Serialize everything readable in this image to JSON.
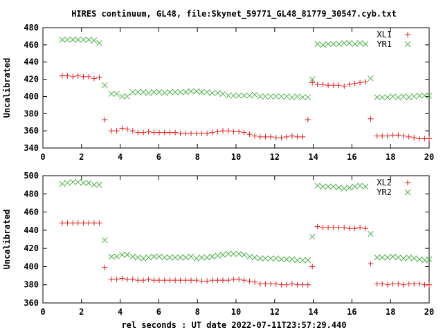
{
  "figure": {
    "title": "HIRES continuum, GL48, file:Skynet_59771_GL48_81779_30547.cyb.txt",
    "xlabel": "rel seconds : UT date 2022-07-11T23:57:29.440"
  },
  "chart_data": [
    {
      "type": "scatter",
      "ylabel": "Uncalibrated",
      "xlim": [
        0,
        20
      ],
      "ylim": [
        340,
        480
      ],
      "xticks": [
        "0",
        "2",
        "4",
        "6",
        "8",
        "10",
        "12",
        "14",
        "16",
        "18",
        "20"
      ],
      "yticks": [
        "340",
        "360",
        "380",
        "400",
        "420",
        "440",
        "460",
        "480"
      ],
      "legend_position": "top-right",
      "grid": false,
      "series": [
        {
          "name": "XL1",
          "marker": "plus",
          "color": "#e41a1c",
          "x": [
            1,
            1.27,
            1.55,
            1.82,
            2.1,
            2.37,
            2.65,
            2.92,
            3.2,
            3.55,
            3.82,
            4.1,
            4.37,
            4.65,
            4.92,
            5.2,
            5.47,
            5.75,
            6.02,
            6.3,
            6.57,
            6.85,
            7.12,
            7.4,
            7.67,
            7.95,
            8.22,
            8.5,
            8.77,
            9.05,
            9.32,
            9.6,
            9.87,
            10.15,
            10.42,
            10.7,
            10.97,
            11.25,
            11.52,
            11.8,
            12.07,
            12.35,
            12.62,
            12.9,
            13.17,
            13.45,
            13.72,
            13.95,
            14.22,
            14.5,
            14.77,
            15.05,
            15.32,
            15.6,
            15.87,
            16.15,
            16.42,
            16.7,
            16.97,
            17.3,
            17.57,
            17.85,
            18.12,
            18.4,
            18.67,
            18.95,
            19.22,
            19.5,
            19.77,
            20
          ],
          "y": [
            424,
            424,
            423,
            424,
            423,
            423,
            421,
            422,
            373,
            360,
            360,
            363,
            362,
            360,
            358,
            358,
            359,
            358,
            358,
            358,
            358,
            358,
            357,
            357,
            357,
            357,
            357,
            357,
            358,
            359,
            360,
            360,
            359,
            359,
            358,
            356,
            354,
            353,
            353,
            353,
            352,
            352,
            353,
            354,
            353,
            353,
            373,
            416,
            414,
            414,
            413,
            413,
            413,
            412,
            414,
            415,
            416,
            417,
            374,
            354,
            354,
            354,
            355,
            355,
            354,
            353,
            352,
            351,
            351,
            351
          ]
        },
        {
          "name": "YR1",
          "marker": "cross",
          "color": "#4daf4a",
          "x": [
            1,
            1.27,
            1.55,
            1.82,
            2.1,
            2.37,
            2.65,
            2.92,
            3.2,
            3.55,
            3.82,
            4.1,
            4.37,
            4.65,
            4.92,
            5.2,
            5.47,
            5.75,
            6.02,
            6.3,
            6.57,
            6.85,
            7.12,
            7.4,
            7.67,
            7.95,
            8.22,
            8.5,
            8.77,
            9.05,
            9.32,
            9.6,
            9.87,
            10.15,
            10.42,
            10.7,
            10.97,
            11.25,
            11.52,
            11.8,
            12.07,
            12.35,
            12.62,
            12.9,
            13.17,
            13.45,
            13.72,
            13.95,
            14.22,
            14.5,
            14.77,
            15.05,
            15.32,
            15.6,
            15.87,
            16.15,
            16.42,
            16.7,
            16.97,
            17.3,
            17.57,
            17.85,
            18.12,
            18.4,
            18.67,
            18.95,
            19.22,
            19.5,
            19.77,
            20
          ],
          "y": [
            466,
            466,
            466,
            466,
            466,
            466,
            465,
            462,
            413,
            403,
            403,
            400,
            400,
            405,
            405,
            405,
            404,
            405,
            405,
            404,
            405,
            405,
            405,
            405,
            406,
            406,
            405,
            405,
            404,
            404,
            403,
            401,
            401,
            401,
            401,
            401,
            402,
            400,
            400,
            400,
            400,
            400,
            400,
            399,
            400,
            399,
            399,
            420,
            461,
            460,
            461,
            461,
            461,
            462,
            462,
            461,
            462,
            461,
            421,
            399,
            399,
            399,
            400,
            399,
            400,
            399,
            400,
            401,
            401,
            401
          ]
        }
      ]
    },
    {
      "type": "scatter",
      "ylabel": "Uncalibrated",
      "xlim": [
        0,
        20
      ],
      "ylim": [
        360,
        500
      ],
      "xticks": [
        "0",
        "2",
        "4",
        "6",
        "8",
        "10",
        "12",
        "14",
        "16",
        "18",
        "20"
      ],
      "yticks": [
        "360",
        "380",
        "400",
        "420",
        "440",
        "460",
        "480",
        "500"
      ],
      "legend_position": "top-right",
      "grid": false,
      "series": [
        {
          "name": "XL2",
          "marker": "plus",
          "color": "#e41a1c",
          "x": [
            1,
            1.27,
            1.55,
            1.82,
            2.1,
            2.37,
            2.65,
            2.92,
            3.2,
            3.55,
            3.82,
            4.1,
            4.37,
            4.65,
            4.92,
            5.2,
            5.47,
            5.75,
            6.02,
            6.3,
            6.57,
            6.85,
            7.12,
            7.4,
            7.67,
            7.95,
            8.22,
            8.5,
            8.77,
            9.05,
            9.32,
            9.6,
            9.87,
            10.15,
            10.42,
            10.7,
            10.97,
            11.25,
            11.52,
            11.8,
            12.07,
            12.35,
            12.62,
            12.9,
            13.17,
            13.45,
            13.72,
            13.95,
            14.22,
            14.5,
            14.77,
            15.05,
            15.32,
            15.6,
            15.87,
            16.15,
            16.42,
            16.7,
            16.97,
            17.3,
            17.57,
            17.85,
            18.12,
            18.4,
            18.67,
            18.95,
            19.22,
            19.5,
            19.77,
            20
          ],
          "y": [
            448,
            448,
            448,
            448,
            448,
            448,
            448,
            448,
            399,
            386,
            386,
            387,
            386,
            386,
            385,
            385,
            386,
            385,
            385,
            385,
            385,
            385,
            385,
            385,
            385,
            385,
            384,
            384,
            385,
            385,
            385,
            385,
            386,
            386,
            385,
            384,
            383,
            381,
            381,
            381,
            381,
            380,
            380,
            381,
            380,
            380,
            380,
            400,
            444,
            443,
            443,
            443,
            443,
            443,
            442,
            442,
            443,
            442,
            403,
            381,
            381,
            380,
            381,
            381,
            380,
            381,
            381,
            381,
            380,
            380
          ]
        },
        {
          "name": "YR2",
          "marker": "cross",
          "color": "#4daf4a",
          "x": [
            1,
            1.27,
            1.55,
            1.82,
            2.1,
            2.37,
            2.65,
            2.92,
            3.2,
            3.55,
            3.82,
            4.1,
            4.37,
            4.65,
            4.92,
            5.2,
            5.47,
            5.75,
            6.02,
            6.3,
            6.57,
            6.85,
            7.12,
            7.4,
            7.67,
            7.95,
            8.22,
            8.5,
            8.77,
            9.05,
            9.32,
            9.6,
            9.87,
            10.15,
            10.42,
            10.7,
            10.97,
            11.25,
            11.52,
            11.8,
            12.07,
            12.35,
            12.62,
            12.9,
            13.17,
            13.45,
            13.72,
            13.95,
            14.22,
            14.5,
            14.77,
            15.05,
            15.32,
            15.6,
            15.87,
            16.15,
            16.42,
            16.7,
            16.97,
            17.3,
            17.57,
            17.85,
            18.12,
            18.4,
            18.67,
            18.95,
            19.22,
            19.5,
            19.77,
            20
          ],
          "y": [
            491,
            492,
            493,
            493,
            492,
            492,
            490,
            490,
            429,
            411,
            411,
            413,
            413,
            411,
            410,
            409,
            410,
            411,
            411,
            410,
            410,
            410,
            410,
            410,
            411,
            409,
            410,
            410,
            411,
            412,
            413,
            414,
            414,
            414,
            413,
            411,
            410,
            409,
            409,
            409,
            409,
            408,
            408,
            408,
            407,
            407,
            407,
            433,
            489,
            488,
            488,
            488,
            487,
            486,
            487,
            488,
            489,
            488,
            436,
            410,
            410,
            410,
            411,
            410,
            409,
            410,
            409,
            408,
            407,
            408
          ]
        }
      ]
    }
  ]
}
